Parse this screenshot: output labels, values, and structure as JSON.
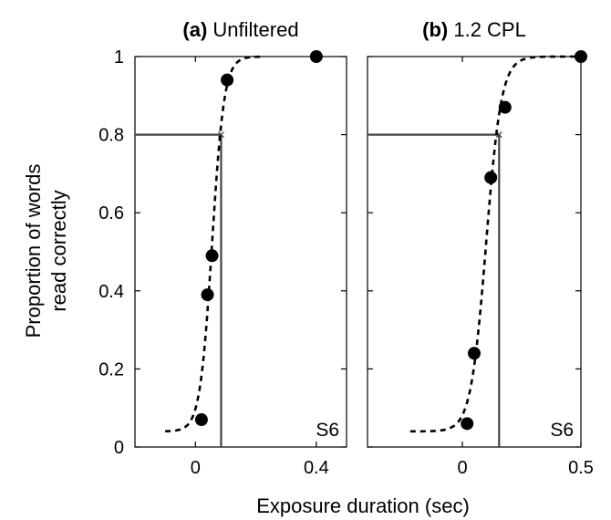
{
  "chart_data": [
    {
      "type": "scatter",
      "title_prefix": "(a)",
      "title": "Unfiltered",
      "annotation": "S6",
      "xlim": [
        -0.2,
        0.5
      ],
      "ylim": [
        0,
        1
      ],
      "xticks": [
        0,
        0.4
      ],
      "xtick_labels": [
        "0",
        "0.4"
      ],
      "yticks": [
        0,
        0.2,
        0.4,
        0.6,
        0.8,
        1
      ],
      "ytick_labels": [
        "0",
        "0.2",
        "0.4",
        "0.6",
        "0.8",
        "1"
      ],
      "points": [
        {
          "x": 0.02,
          "y": 0.07
        },
        {
          "x": 0.04,
          "y": 0.39
        },
        {
          "x": 0.055,
          "y": 0.49
        },
        {
          "x": 0.105,
          "y": 0.94
        },
        {
          "x": 0.4,
          "y": 1.0
        }
      ],
      "fit": {
        "x_range": [
          -0.1,
          0.22
        ],
        "midpoint": 0.055,
        "slope": 50,
        "floor": 0.04,
        "ceiling": 1.0
      },
      "threshold": {
        "x": 0.085,
        "y": 0.8
      }
    },
    {
      "type": "scatter",
      "title_prefix": "(b)",
      "title": "1.2 CPL",
      "annotation": "S6",
      "xlim": [
        -0.4,
        0.5
      ],
      "ylim": [
        0,
        1
      ],
      "xticks": [
        0,
        0.5
      ],
      "xtick_labels": [
        "0",
        "0.5"
      ],
      "yticks": [
        0,
        0.2,
        0.4,
        0.6,
        0.8,
        1
      ],
      "ytick_labels": [],
      "points": [
        {
          "x": 0.02,
          "y": 0.06
        },
        {
          "x": 0.05,
          "y": 0.24
        },
        {
          "x": 0.12,
          "y": 0.69
        },
        {
          "x": 0.18,
          "y": 0.87
        },
        {
          "x": 0.5,
          "y": 1.0
        }
      ],
      "fit": {
        "x_range": [
          -0.22,
          0.5
        ],
        "midpoint": 0.1,
        "slope": 31,
        "floor": 0.04,
        "ceiling": 1.0
      },
      "threshold": {
        "x": 0.155,
        "y": 0.8
      }
    }
  ],
  "ylabel_line1": "Proportion of words",
  "ylabel_line2": "read correctly",
  "xlabel": "Exposure duration (sec)"
}
